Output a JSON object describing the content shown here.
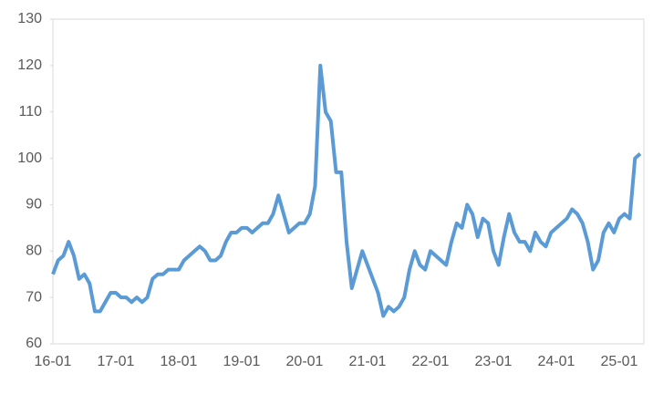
{
  "chart_data": {
    "type": "line",
    "categories": [
      "16-01",
      null,
      null,
      null,
      null,
      null,
      null,
      null,
      null,
      null,
      null,
      null,
      "17-01",
      null,
      null,
      null,
      null,
      null,
      null,
      null,
      null,
      null,
      null,
      null,
      "18-01",
      null,
      null,
      null,
      null,
      null,
      null,
      null,
      null,
      null,
      null,
      null,
      "19-01",
      null,
      null,
      null,
      null,
      null,
      null,
      null,
      null,
      null,
      null,
      null,
      "20-01",
      null,
      null,
      null,
      null,
      null,
      null,
      null,
      null,
      null,
      null,
      null,
      "21-01",
      null,
      null,
      null,
      null,
      null,
      null,
      null,
      null,
      null,
      null,
      null,
      "22-01",
      null,
      null,
      null,
      null,
      null,
      null,
      null,
      null,
      null,
      null,
      null,
      "23-01",
      null,
      null,
      null,
      null,
      null,
      null,
      null,
      null,
      null,
      null,
      null,
      "24-01",
      null,
      null,
      null,
      null,
      null,
      null,
      null,
      null,
      null,
      null,
      null,
      "25-01",
      null,
      null,
      null,
      null
    ],
    "values": [
      75,
      78,
      79,
      82,
      79,
      74,
      75,
      73,
      67,
      67,
      69,
      71,
      71,
      70,
      70,
      69,
      70,
      69,
      70,
      74,
      75,
      75,
      76,
      76,
      76,
      78,
      79,
      80,
      81,
      80,
      78,
      78,
      79,
      82,
      84,
      84,
      85,
      85,
      84,
      85,
      86,
      86,
      88,
      92,
      88,
      84,
      85,
      86,
      86,
      88,
      94,
      120,
      110,
      108,
      97,
      97,
      82,
      72,
      76,
      80,
      77,
      74,
      71,
      66,
      68,
      67,
      68,
      70,
      76,
      80,
      77,
      76,
      80,
      79,
      78,
      77,
      82,
      86,
      85,
      90,
      88,
      83,
      87,
      86,
      80,
      77,
      83,
      88,
      84,
      82,
      82,
      80,
      84,
      82,
      81,
      84,
      85,
      86,
      87,
      89,
      88,
      86,
      82,
      76,
      78,
      84,
      86,
      84,
      87,
      88,
      87,
      100,
      101
    ],
    "color": "#5b9bd5",
    "ylim": [
      60,
      130
    ],
    "yticks": [
      60,
      70,
      80,
      90,
      100,
      110,
      120,
      130
    ]
  }
}
